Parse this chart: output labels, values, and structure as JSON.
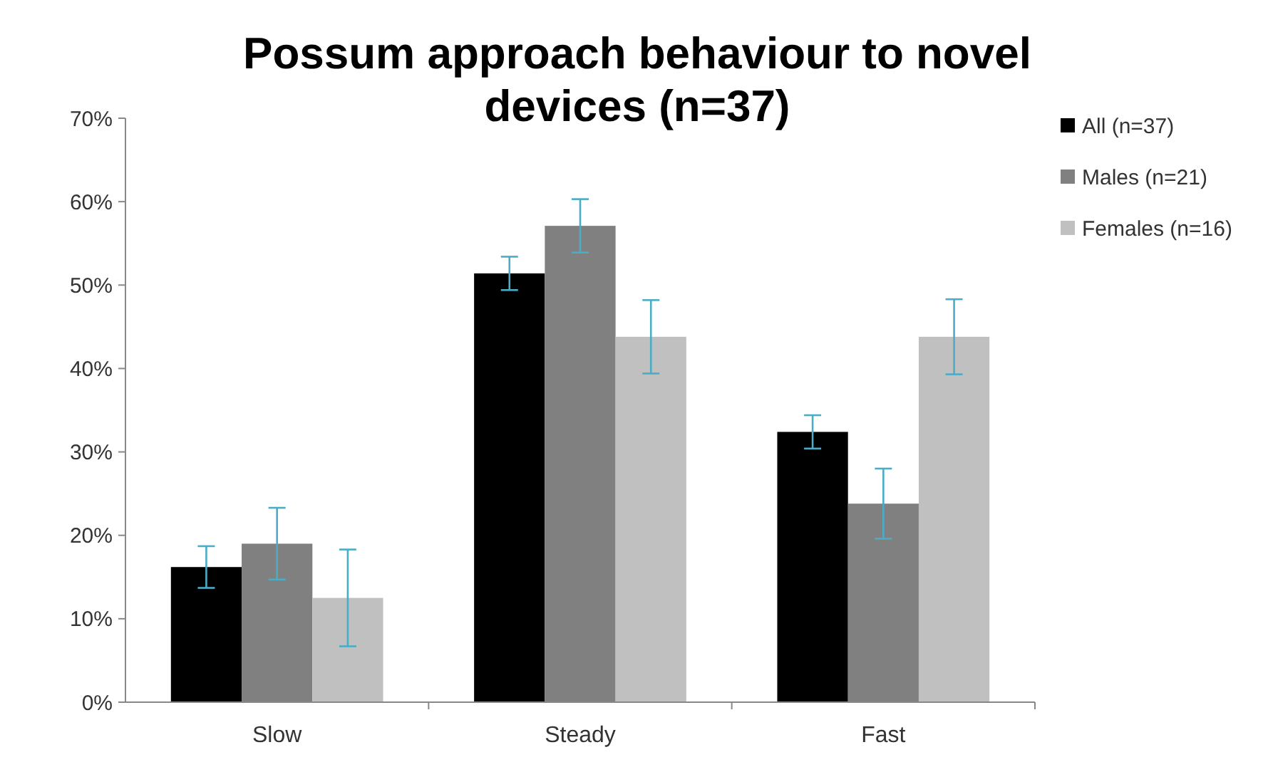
{
  "chart_data": {
    "type": "bar",
    "title": "Possum approach behaviour to novel devices (n=37)",
    "categories": [
      "Slow",
      "Steady",
      "Fast"
    ],
    "series": [
      {
        "name": "All (n=37)",
        "color": "#000000",
        "values": [
          16.2,
          51.4,
          32.4
        ],
        "errors": [
          2.5,
          2,
          2
        ]
      },
      {
        "name": "Males (n=21)",
        "color": "#808080",
        "values": [
          19,
          57.1,
          23.8
        ],
        "errors": [
          4.3,
          3.2,
          4.2
        ]
      },
      {
        "name": "Females (n=16)",
        "color": "#c0c0c0",
        "values": [
          12.5,
          43.8,
          43.8
        ],
        "errors": [
          5.8,
          4.4,
          4.5
        ]
      }
    ],
    "ylim": [
      0,
      70
    ],
    "yticks": [
      {
        "value": 0,
        "label": "0%"
      },
      {
        "value": 10,
        "label": "10%"
      },
      {
        "value": 20,
        "label": "20%"
      },
      {
        "value": 30,
        "label": "30%"
      },
      {
        "value": 40,
        "label": "40%"
      },
      {
        "value": 50,
        "label": "50%"
      },
      {
        "value": 60,
        "label": "60%"
      },
      {
        "value": 70,
        "label": "70%"
      }
    ],
    "grid": false,
    "legend": "right"
  }
}
